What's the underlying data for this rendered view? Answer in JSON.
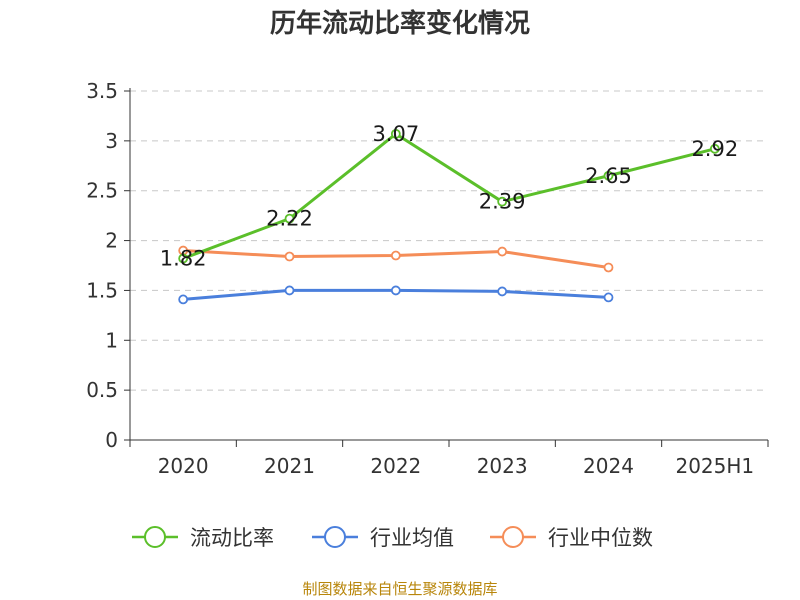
{
  "chart_data": {
    "type": "line",
    "title": "历年流动比率变化情况",
    "categories": [
      "2020",
      "2021",
      "2022",
      "2023",
      "2024",
      "2025H1"
    ],
    "y_ticks": [
      "0",
      "0.5",
      "1",
      "1.5",
      "2",
      "2.5",
      "3",
      "3.5"
    ],
    "ylim": [
      0,
      3.5
    ],
    "grid": true,
    "legend_position": "bottom",
    "series": [
      {
        "name": "流动比率",
        "color": "#5bbf2a",
        "values": [
          1.82,
          2.22,
          3.07,
          2.39,
          2.65,
          2.92
        ],
        "labels": [
          "1.82",
          "2.22",
          "3.07",
          "2.39",
          "2.65",
          "2.92"
        ],
        "show_labels": true
      },
      {
        "name": "行业均值",
        "color": "#4a7fdc",
        "values": [
          1.41,
          1.5,
          1.5,
          1.49,
          1.43,
          null
        ],
        "show_labels": false
      },
      {
        "name": "行业中位数",
        "color": "#f58d58",
        "values": [
          1.9,
          1.84,
          1.85,
          1.89,
          1.73,
          null
        ],
        "show_labels": false
      }
    ]
  },
  "source": "制图数据来自恒生聚源数据库"
}
